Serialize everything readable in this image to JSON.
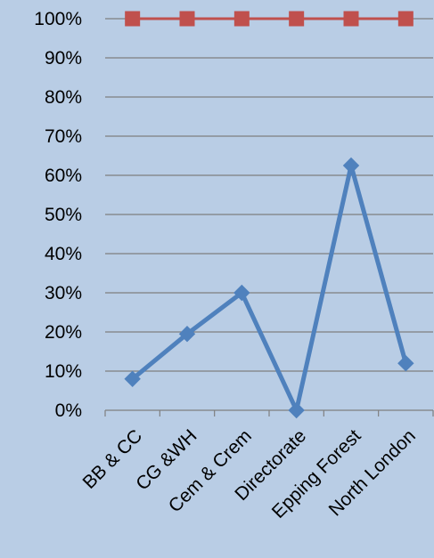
{
  "chart_data": {
    "type": "line",
    "categories": [
      "BB & CC",
      "CG &WH",
      "Cem & Crem",
      "Directorate",
      "Epping Forest",
      "North London"
    ],
    "series": [
      {
        "values": [
          8,
          19.5,
          30,
          0,
          62.5,
          12
        ],
        "color": "#4f81bd",
        "marker": "diamond"
      },
      {
        "values": [
          100,
          100,
          100,
          100,
          100,
          100
        ],
        "color": "#c0504d",
        "marker": "square"
      }
    ],
    "y_ticks": [
      "0%",
      "10%",
      "20%",
      "30%",
      "40%",
      "50%",
      "60%",
      "70%",
      "80%",
      "90%",
      "100%"
    ],
    "ylim": [
      0,
      100
    ],
    "y_unit": "percent",
    "grid": true,
    "legend": "none",
    "background_color": "#b9cde5",
    "gridline_color": "#7f7f7f"
  }
}
